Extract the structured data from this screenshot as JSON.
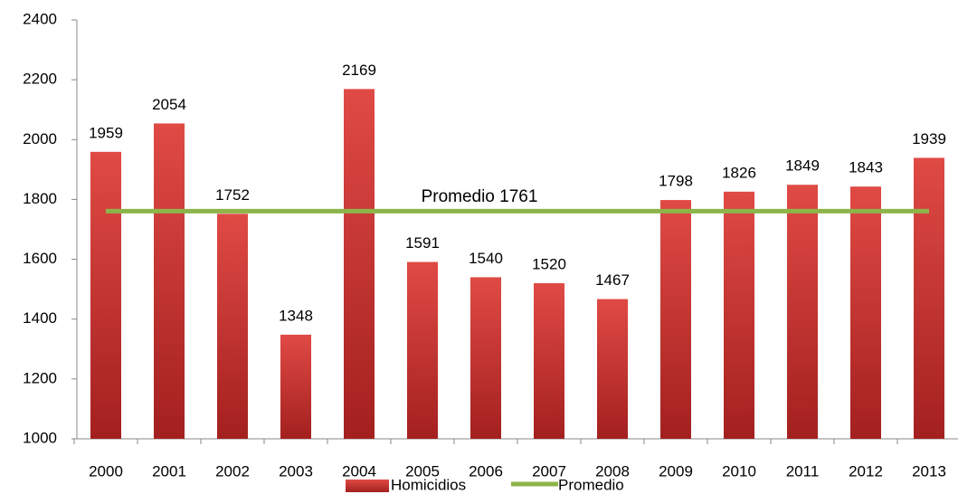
{
  "chart_data": {
    "type": "bar",
    "categories": [
      "2000",
      "2001",
      "2002",
      "2003",
      "2004",
      "2005",
      "2006",
      "2007",
      "2008",
      "2009",
      "2010",
      "2011",
      "2012",
      "2013"
    ],
    "series": [
      {
        "name": "Homicidios",
        "color": "#c0392b",
        "values": [
          1959,
          2054,
          1752,
          1348,
          2169,
          1591,
          1540,
          1520,
          1467,
          1798,
          1826,
          1849,
          1843,
          1939
        ]
      },
      {
        "name": "Promedio",
        "type": "line",
        "color": "#8db54a",
        "values": [
          1761,
          1761,
          1761,
          1761,
          1761,
          1761,
          1761,
          1761,
          1761,
          1761,
          1761,
          1761,
          1761,
          1761
        ]
      }
    ],
    "annotation": "Promedio 1761",
    "ylim": [
      1000,
      2400
    ],
    "yticks": [
      1000,
      1200,
      1400,
      1600,
      1800,
      2000,
      2200,
      2400
    ],
    "legend": "bottom"
  }
}
